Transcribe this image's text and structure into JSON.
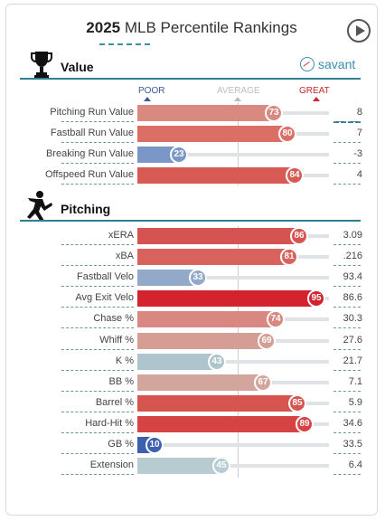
{
  "header": {
    "year": "2025",
    "title": "MLB Percentile Rankings"
  },
  "savant_label": "savant",
  "scale": {
    "poor": "POOR",
    "average": "AVERAGE",
    "great": "GREAT"
  },
  "sections": [
    {
      "title": "Value",
      "icon": "trophy-icon",
      "rows": [
        {
          "label": "Pitching Run Value",
          "percentile": 73,
          "value": "8",
          "color": "#d9897f"
        },
        {
          "label": "Fastball Run Value",
          "percentile": 80,
          "value": "7",
          "color": "#db6f66"
        },
        {
          "label": "Breaking Run Value",
          "percentile": 23,
          "value": "-3",
          "color": "#7b97c8"
        },
        {
          "label": "Offspeed Run Value",
          "percentile": 84,
          "value": "4",
          "color": "#d85a55"
        }
      ]
    },
    {
      "title": "Pitching",
      "icon": "pitcher-icon",
      "rows": [
        {
          "label": "xERA",
          "percentile": 86,
          "value": "3.09",
          "color": "#d55350"
        },
        {
          "label": "xBA",
          "percentile": 81,
          "value": ".216",
          "color": "#d8635c"
        },
        {
          "label": "Fastball Velo",
          "percentile": 33,
          "value": "93.4",
          "color": "#92a9c9"
        },
        {
          "label": "Avg Exit Velo",
          "percentile": 95,
          "value": "86.6",
          "color": "#d2232f"
        },
        {
          "label": "Chase %",
          "percentile": 74,
          "value": "30.3",
          "color": "#d88880"
        },
        {
          "label": "Whiff %",
          "percentile": 69,
          "value": "27.6",
          "color": "#d69d95"
        },
        {
          "label": "K %",
          "percentile": 43,
          "value": "21.7",
          "color": "#aec5ce"
        },
        {
          "label": "BB %",
          "percentile": 67,
          "value": "7.1",
          "color": "#d3a69d"
        },
        {
          "label": "Barrel %",
          "percentile": 85,
          "value": "5.9",
          "color": "#d6554f"
        },
        {
          "label": "Hard-Hit %",
          "percentile": 89,
          "value": "34.6",
          "color": "#d54443"
        },
        {
          "label": "GB %",
          "percentile": 10,
          "value": "33.5",
          "color": "#3d5fb0"
        },
        {
          "label": "Extension",
          "percentile": 45,
          "value": "6.4",
          "color": "#b6ccd1"
        }
      ]
    }
  ]
}
